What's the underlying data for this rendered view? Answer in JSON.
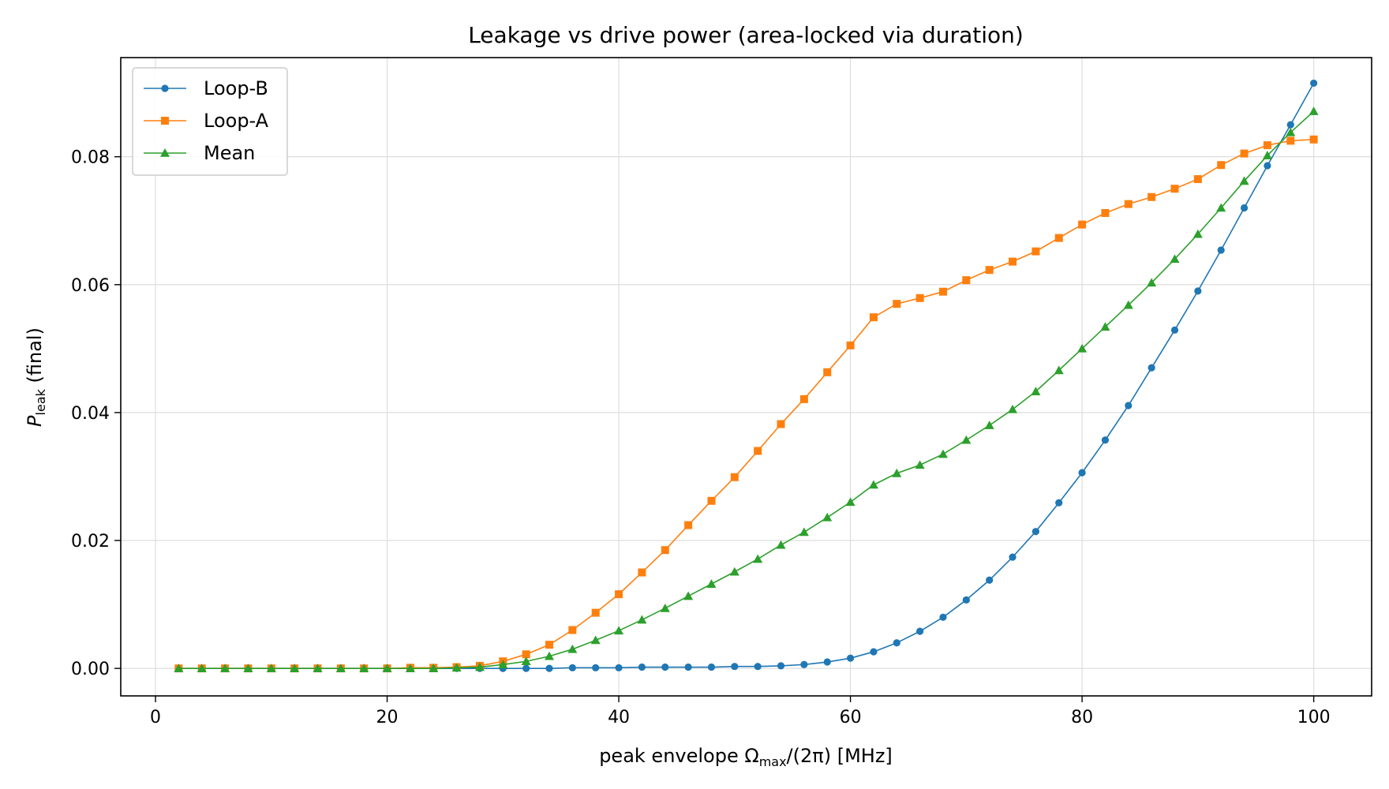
{
  "chart_data": {
    "type": "line",
    "title": "Leakage vs drive power (area-locked via duration)",
    "xlabel": {
      "main": "peak envelope Ω",
      "sub": "max",
      "rest": "/(2π) [MHz]"
    },
    "ylabel": {
      "main": "P",
      "sub": "leak",
      "rest": " (final)"
    },
    "xlim": [
      -3,
      105
    ],
    "ylim": [
      -0.0043,
      0.0955
    ],
    "xticks": [
      0,
      20,
      40,
      60,
      80,
      100
    ],
    "yticks": [
      0.0,
      0.02,
      0.04,
      0.06,
      0.08
    ],
    "ytick_labels": [
      "0.00",
      "0.02",
      "0.04",
      "0.06",
      "0.08"
    ],
    "grid": true,
    "legend_position": "top-left",
    "x": [
      2,
      4,
      6,
      8,
      10,
      12,
      14,
      16,
      18,
      20,
      22,
      24,
      26,
      28,
      30,
      32,
      34,
      36,
      38,
      40,
      42,
      44,
      46,
      48,
      50,
      52,
      54,
      56,
      58,
      60,
      62,
      64,
      66,
      68,
      70,
      72,
      74,
      76,
      78,
      80,
      82,
      84,
      86,
      88,
      90,
      92,
      94,
      96,
      98,
      100
    ],
    "series": [
      {
        "name": "Loop-B",
        "color": "#1f77b4",
        "marker": "circle",
        "values": [
          0,
          0,
          0,
          0,
          0,
          0,
          0,
          0,
          0,
          0,
          0,
          0,
          0,
          0,
          0,
          0,
          0,
          0.0001,
          0.0001,
          0.0001,
          0.0002,
          0.0002,
          0.0002,
          0.0002,
          0.0003,
          0.0003,
          0.0004,
          0.0006,
          0.001,
          0.0016,
          0.0026,
          0.004,
          0.0058,
          0.008,
          0.0107,
          0.0138,
          0.0174,
          0.0214,
          0.0259,
          0.0306,
          0.0357,
          0.0411,
          0.047,
          0.0529,
          0.059,
          0.0654,
          0.072,
          0.0786,
          0.085,
          0.0915
        ]
      },
      {
        "name": "Loop-A",
        "color": "#ff7f0e",
        "marker": "square",
        "values": [
          0,
          0,
          0,
          0,
          0,
          0,
          0,
          0,
          0,
          0,
          0.0001,
          0.0001,
          0.0002,
          0.0004,
          0.0011,
          0.0022,
          0.0037,
          0.006,
          0.0087,
          0.0116,
          0.015,
          0.0185,
          0.0224,
          0.0262,
          0.0299,
          0.034,
          0.0382,
          0.0421,
          0.0463,
          0.0505,
          0.0549,
          0.057,
          0.0579,
          0.0589,
          0.0607,
          0.0623,
          0.0636,
          0.0652,
          0.0673,
          0.0694,
          0.0712,
          0.0726,
          0.0737,
          0.075,
          0.0765,
          0.0787,
          0.0805,
          0.0818,
          0.0825,
          0.0827
        ]
      },
      {
        "name": "Mean",
        "color": "#2ca02c",
        "marker": "triangle",
        "values": [
          0,
          0,
          0,
          0,
          0,
          0,
          0,
          0,
          0,
          0,
          0,
          0,
          0.0001,
          0.0002,
          0.0006,
          0.0011,
          0.0019,
          0.003,
          0.0044,
          0.0059,
          0.0076,
          0.0094,
          0.0113,
          0.0132,
          0.0151,
          0.0171,
          0.0193,
          0.0213,
          0.0236,
          0.026,
          0.0287,
          0.0305,
          0.0318,
          0.0335,
          0.0357,
          0.038,
          0.0405,
          0.0433,
          0.0466,
          0.05,
          0.0534,
          0.0568,
          0.0603,
          0.064,
          0.0679,
          0.072,
          0.0762,
          0.0802,
          0.0838,
          0.0871
        ]
      }
    ]
  }
}
